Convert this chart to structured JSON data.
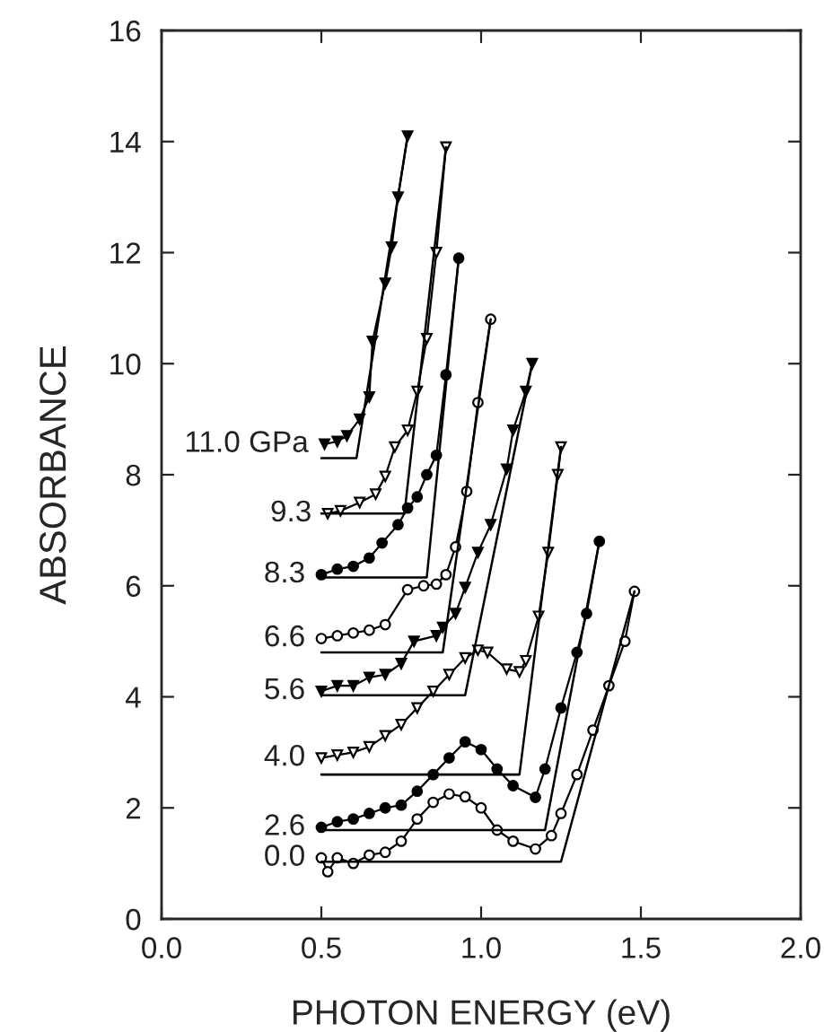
{
  "chart_data": {
    "type": "line",
    "xlabel": "PHOTON ENERGY (eV)",
    "ylabel": "ABSORBANCE",
    "xlim": [
      0.0,
      2.0
    ],
    "xticks": [
      {
        "value": 0.0,
        "label": "0.0"
      },
      {
        "value": 0.5,
        "label": "0.5"
      },
      {
        "value": 1.0,
        "label": "1.0"
      },
      {
        "value": 1.5,
        "label": "1.5"
      },
      {
        "value": 2.0,
        "label": "2.0"
      }
    ],
    "ylim": [
      0,
      16
    ],
    "yticks": [
      0,
      2,
      4,
      6,
      8,
      10,
      12,
      14,
      16
    ],
    "grid": false,
    "legend": false,
    "line_style": "solid",
    "series": [
      {
        "name": "0.0",
        "color": "#000000",
        "marker": "circle",
        "x": [
          0.5,
          0.52,
          0.55,
          0.6,
          0.65,
          0.7,
          0.75,
          0.8,
          0.85,
          0.9,
          0.95,
          1.0,
          1.05,
          1.1,
          1.17,
          1.22,
          1.25,
          1.3,
          1.35,
          1.4,
          1.45,
          1.48
        ],
        "values": [
          1.1,
          0.85,
          1.1,
          1.0,
          1.15,
          1.2,
          1.4,
          1.8,
          2.1,
          2.25,
          2.2,
          2.0,
          1.6,
          1.4,
          1.26,
          1.5,
          1.9,
          2.6,
          3.4,
          4.2,
          5.0,
          5.9
        ]
      },
      {
        "color": "#000000",
        "marker": "none",
        "x": [
          0.5,
          1.25,
          1.48
        ],
        "values": [
          1.03,
          1.03,
          5.9
        ]
      },
      {
        "name": "2.6",
        "color": "#000000",
        "marker": "circle",
        "x": [
          0.5,
          0.55,
          0.6,
          0.65,
          0.7,
          0.75,
          0.8,
          0.85,
          0.9,
          0.95,
          1.0,
          1.05,
          1.1,
          1.17,
          1.2,
          1.25,
          1.3,
          1.33,
          1.37
        ],
        "values": [
          1.65,
          1.75,
          1.8,
          1.9,
          2.0,
          2.05,
          2.3,
          2.6,
          2.9,
          3.19,
          3.05,
          2.7,
          2.4,
          2.19,
          2.7,
          3.8,
          4.8,
          5.5,
          6.8
        ]
      },
      {
        "color": "#000000",
        "marker": "none",
        "x": [
          0.5,
          1.2,
          1.37
        ],
        "values": [
          1.6,
          1.6,
          6.8
        ]
      },
      {
        "name": "4.0",
        "color": "#000000",
        "marker": "triangle",
        "x": [
          0.5,
          0.55,
          0.6,
          0.65,
          0.7,
          0.75,
          0.8,
          0.85,
          0.9,
          0.95,
          0.99,
          1.02,
          1.08,
          1.12,
          1.14,
          1.18,
          1.21,
          1.24,
          1.25
        ],
        "values": [
          2.9,
          2.95,
          3.0,
          3.1,
          3.3,
          3.5,
          3.8,
          4.1,
          4.4,
          4.7,
          4.84,
          4.8,
          4.5,
          4.45,
          4.65,
          5.45,
          6.6,
          8.0,
          8.5
        ]
      },
      {
        "color": "#000000",
        "marker": "none",
        "x": [
          0.5,
          1.12,
          1.25
        ],
        "values": [
          2.6,
          2.6,
          8.5
        ]
      },
      {
        "name": "5.6",
        "color": "#000000",
        "marker": "triangle",
        "x": [
          0.5,
          0.55,
          0.6,
          0.65,
          0.7,
          0.75,
          0.79,
          0.86,
          0.88,
          0.92,
          0.95,
          0.99,
          1.03,
          1.08,
          1.1,
          1.14,
          1.16
        ],
        "values": [
          4.1,
          4.2,
          4.2,
          4.35,
          4.4,
          4.6,
          5.0,
          5.1,
          5.25,
          5.5,
          5.97,
          6.6,
          7.1,
          8.1,
          8.8,
          9.5,
          10.0
        ]
      },
      {
        "color": "#000000",
        "marker": "none",
        "x": [
          0.5,
          0.95,
          1.16
        ],
        "values": [
          4.03,
          4.03,
          10.0
        ]
      },
      {
        "name": "6.6",
        "color": "#000000",
        "marker": "circle",
        "x": [
          0.5,
          0.55,
          0.6,
          0.65,
          0.7,
          0.77,
          0.82,
          0.86,
          0.89,
          0.92,
          0.955,
          0.99,
          1.03
        ],
        "values": [
          5.05,
          5.1,
          5.15,
          5.2,
          5.3,
          5.93,
          6.0,
          6.03,
          6.2,
          6.7,
          7.7,
          9.3,
          10.8
        ]
      },
      {
        "color": "#000000",
        "marker": "none",
        "x": [
          0.5,
          0.88,
          1.03
        ],
        "values": [
          4.8,
          4.8,
          10.8
        ]
      },
      {
        "name": "8.3",
        "color": "#000000",
        "marker": "circle",
        "x": [
          0.5,
          0.55,
          0.6,
          0.65,
          0.69,
          0.74,
          0.77,
          0.8,
          0.83,
          0.86,
          0.89,
          0.93
        ],
        "values": [
          6.2,
          6.3,
          6.35,
          6.5,
          6.77,
          7.1,
          7.4,
          7.6,
          8.0,
          8.35,
          9.8,
          11.9
        ]
      },
      {
        "color": "#000000",
        "marker": "none",
        "x": [
          0.5,
          0.83,
          0.93
        ],
        "values": [
          6.15,
          6.15,
          11.9
        ]
      },
      {
        "name": "9.3",
        "color": "#000000",
        "marker": "triangle",
        "x": [
          0.52,
          0.56,
          0.62,
          0.67,
          0.7,
          0.73,
          0.77,
          0.8,
          0.83,
          0.86,
          0.89
        ],
        "values": [
          7.3,
          7.35,
          7.5,
          7.65,
          7.97,
          8.5,
          8.8,
          9.5,
          10.45,
          12.0,
          13.9
        ]
      },
      {
        "color": "#000000",
        "marker": "none",
        "x": [
          0.5,
          0.76,
          0.89
        ],
        "values": [
          7.3,
          7.3,
          13.9
        ]
      },
      {
        "name": "11.0 GPa",
        "color": "#000000",
        "marker": "triangle",
        "x": [
          0.51,
          0.55,
          0.58,
          0.62,
          0.65,
          0.66,
          0.7,
          0.72,
          0.74,
          0.77
        ],
        "values": [
          8.55,
          8.6,
          8.7,
          9.0,
          9.4,
          10.4,
          11.45,
          12.1,
          13.0,
          14.1
        ]
      },
      {
        "color": "#000000",
        "marker": "none",
        "x": [
          0.5,
          0.61,
          0.77
        ],
        "values": [
          8.3,
          8.3,
          14.1
        ]
      }
    ]
  }
}
